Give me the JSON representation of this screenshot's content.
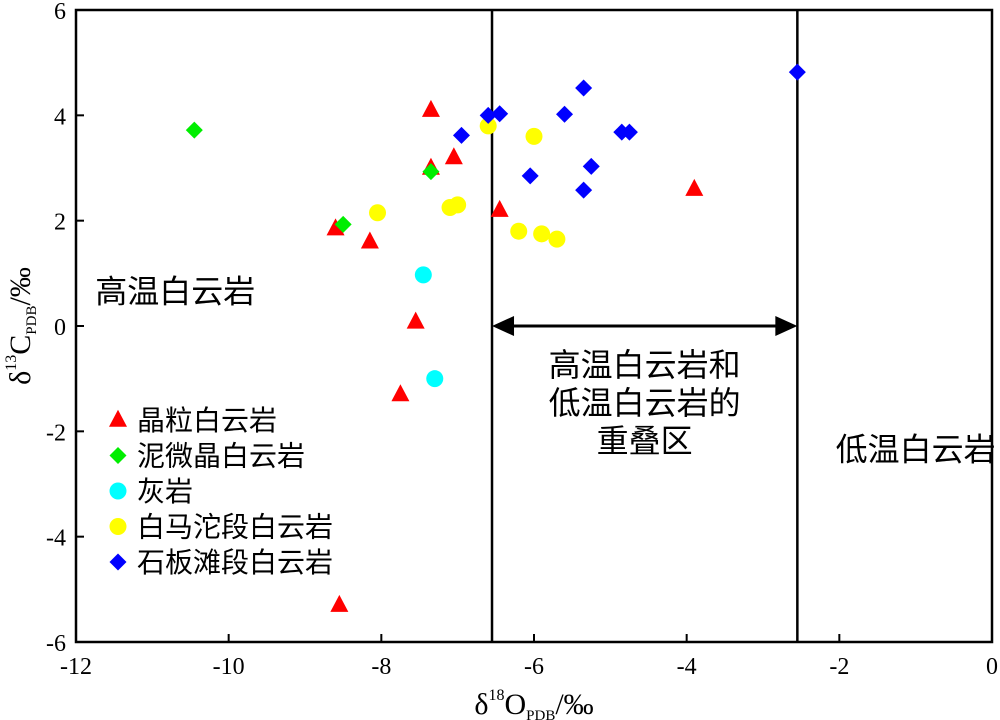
{
  "chart_data": {
    "type": "scatter",
    "title": "",
    "xlabel": {
      "symbol": "δ",
      "sup": "18",
      "main": "O",
      "sub": "PDB",
      "unit": "/‰"
    },
    "ylabel": {
      "symbol": "δ",
      "sup": "13",
      "main": "C",
      "sub": "PDB",
      "unit": "/‰"
    },
    "xlim": [
      -12,
      0
    ],
    "ylim": [
      -6,
      6
    ],
    "xticks": [
      -12,
      -10,
      -8,
      -6,
      -4,
      -2,
      0
    ],
    "yticks": [
      -6,
      -4,
      -2,
      0,
      2,
      4,
      6
    ],
    "xtick_labels": [
      "-12",
      "-10",
      "-8",
      "-6",
      "-4",
      "-2",
      "0"
    ],
    "ytick_labels": [
      "-6",
      "-4",
      "-2",
      "0",
      "2",
      "4",
      "6"
    ],
    "grid": false,
    "legend_position": "lower-left",
    "boundary_lines_x": [
      -6.55,
      -2.55
    ],
    "region_labels": [
      {
        "lines": [
          "高温白云岩"
        ],
        "x": -10.7,
        "y": 0.45
      },
      {
        "lines": [
          "高温白云岩和",
          "低温白云岩的",
          "重叠区"
        ],
        "x": -4.55,
        "y": -0.95
      },
      {
        "lines": [
          "低温白云岩"
        ],
        "x": -1.0,
        "y": -2.55
      }
    ],
    "overlap_arrow": {
      "x_from": -6.55,
      "x_to": -2.55,
      "y": 0
    },
    "series": [
      {
        "name": "晶粒白云岩",
        "marker": "triangle",
        "color": "#ff0000",
        "points": [
          [
            -7.35,
            4.1
          ],
          [
            -7.35,
            3.0
          ],
          [
            -7.05,
            3.2
          ],
          [
            -8.6,
            1.85
          ],
          [
            -8.15,
            1.6
          ],
          [
            -6.45,
            2.2
          ],
          [
            -7.55,
            0.08
          ],
          [
            -7.75,
            -1.3
          ],
          [
            -8.55,
            -5.3
          ],
          [
            -3.9,
            2.6
          ]
        ]
      },
      {
        "name": "泥微晶白云岩",
        "marker": "diamond",
        "color": "#00ee00",
        "points": [
          [
            -10.45,
            3.72
          ],
          [
            -8.5,
            1.93
          ],
          [
            -7.35,
            2.93
          ]
        ]
      },
      {
        "name": "灰岩",
        "marker": "circle",
        "color": "#00ffff",
        "points": [
          [
            -7.45,
            0.97
          ],
          [
            -7.3,
            -1.0
          ]
        ]
      },
      {
        "name": "白马沱段白云岩",
        "marker": "circle",
        "color": "#ffff00",
        "points": [
          [
            -8.05,
            2.15
          ],
          [
            -7.1,
            2.25
          ],
          [
            -7.0,
            2.3
          ],
          [
            -6.6,
            3.8
          ],
          [
            -6.0,
            3.6
          ],
          [
            -6.2,
            1.8
          ],
          [
            -5.9,
            1.75
          ],
          [
            -5.7,
            1.65
          ]
        ]
      },
      {
        "name": "石板滩段白云岩",
        "marker": "diamond",
        "color": "#0000ff",
        "points": [
          [
            -6.6,
            4.0
          ],
          [
            -6.45,
            4.03
          ],
          [
            -6.95,
            3.62
          ],
          [
            -5.35,
            4.52
          ],
          [
            -5.6,
            4.02
          ],
          [
            -4.85,
            3.68
          ],
          [
            -4.75,
            3.68
          ],
          [
            -6.05,
            2.85
          ],
          [
            -5.25,
            3.03
          ],
          [
            -5.35,
            2.58
          ],
          [
            -2.55,
            4.82
          ]
        ]
      }
    ]
  }
}
